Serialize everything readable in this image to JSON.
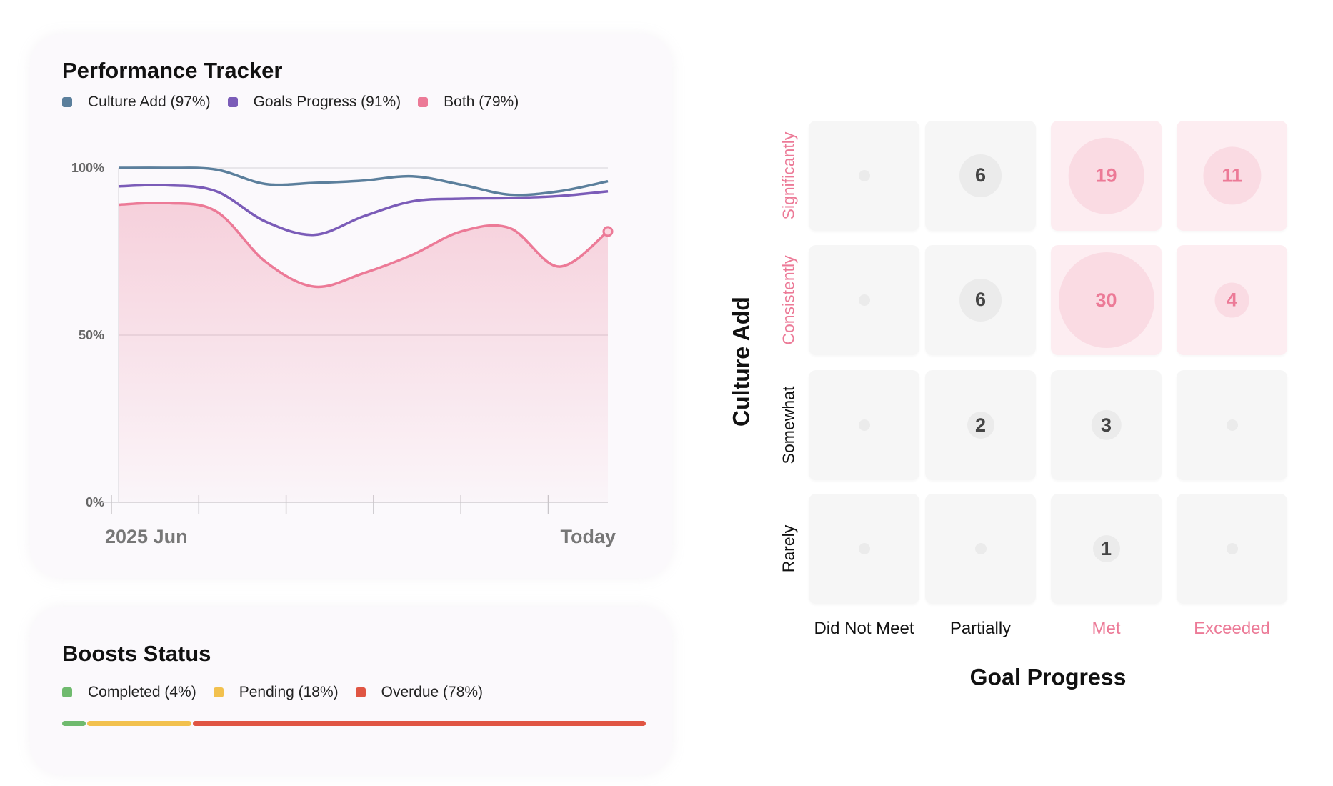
{
  "performance": {
    "title": "Performance Tracker",
    "legend": [
      {
        "label": "Culture Add (97%)",
        "color": "#5b7f9c"
      },
      {
        "label": "Goals Progress (91%)",
        "color": "#7b5cb8"
      },
      {
        "label": "Both (79%)",
        "color": "#ec7a97"
      }
    ]
  },
  "chart_data": {
    "type": "line",
    "title": "Performance Tracker",
    "ylim": [
      0,
      100
    ],
    "yticks": [
      "100%",
      "50%",
      "0%"
    ],
    "ytick_values": [
      100,
      50,
      0
    ],
    "x_labels": [
      "2025 Jun",
      "Today"
    ],
    "grid": true,
    "legend_placement": "top-left",
    "series": [
      {
        "name": "Culture Add (97%)",
        "color": "#5b7f9c",
        "values": [
          100,
          100,
          99.5,
          95.2,
          95.5,
          96.2,
          97.5,
          95,
          92,
          93,
          96
        ]
      },
      {
        "name": "Goals Progress (91%)",
        "color": "#7b5cb8",
        "values": [
          94.5,
          94.8,
          93,
          84,
          80,
          85.5,
          90,
          90.8,
          91,
          91.6,
          93
        ]
      },
      {
        "name": "Both (79%)",
        "color": "#ec7a97",
        "area": true,
        "values": [
          89,
          89.5,
          87,
          72,
          64.5,
          68.5,
          74,
          81,
          82,
          70.5,
          81
        ]
      }
    ]
  },
  "boosts": {
    "title": "Boosts Status",
    "legend": [
      {
        "label": "Completed (4%)",
        "color": "#6fba6e",
        "value": 4
      },
      {
        "label": "Pending (18%)",
        "color": "#f2c14e",
        "value": 18
      },
      {
        "label": "Overdue (78%)",
        "color": "#e05543",
        "value": 78
      }
    ]
  },
  "matrix": {
    "y_title": "Culture Add",
    "x_title": "Goal Progress",
    "rows": [
      "Significantly",
      "Consistently",
      "Somewhat",
      "Rarely"
    ],
    "cols": [
      "Did Not Meet",
      "Partially",
      "Met",
      "Exceeded"
    ],
    "highlight_rows": [
      0,
      1
    ],
    "highlight_cols": [
      2,
      3
    ],
    "values": [
      [
        null,
        6,
        19,
        11
      ],
      [
        null,
        6,
        30,
        4
      ],
      [
        null,
        2,
        3,
        null
      ],
      [
        null,
        null,
        1,
        null
      ]
    ],
    "accent": "#ec7a97"
  }
}
